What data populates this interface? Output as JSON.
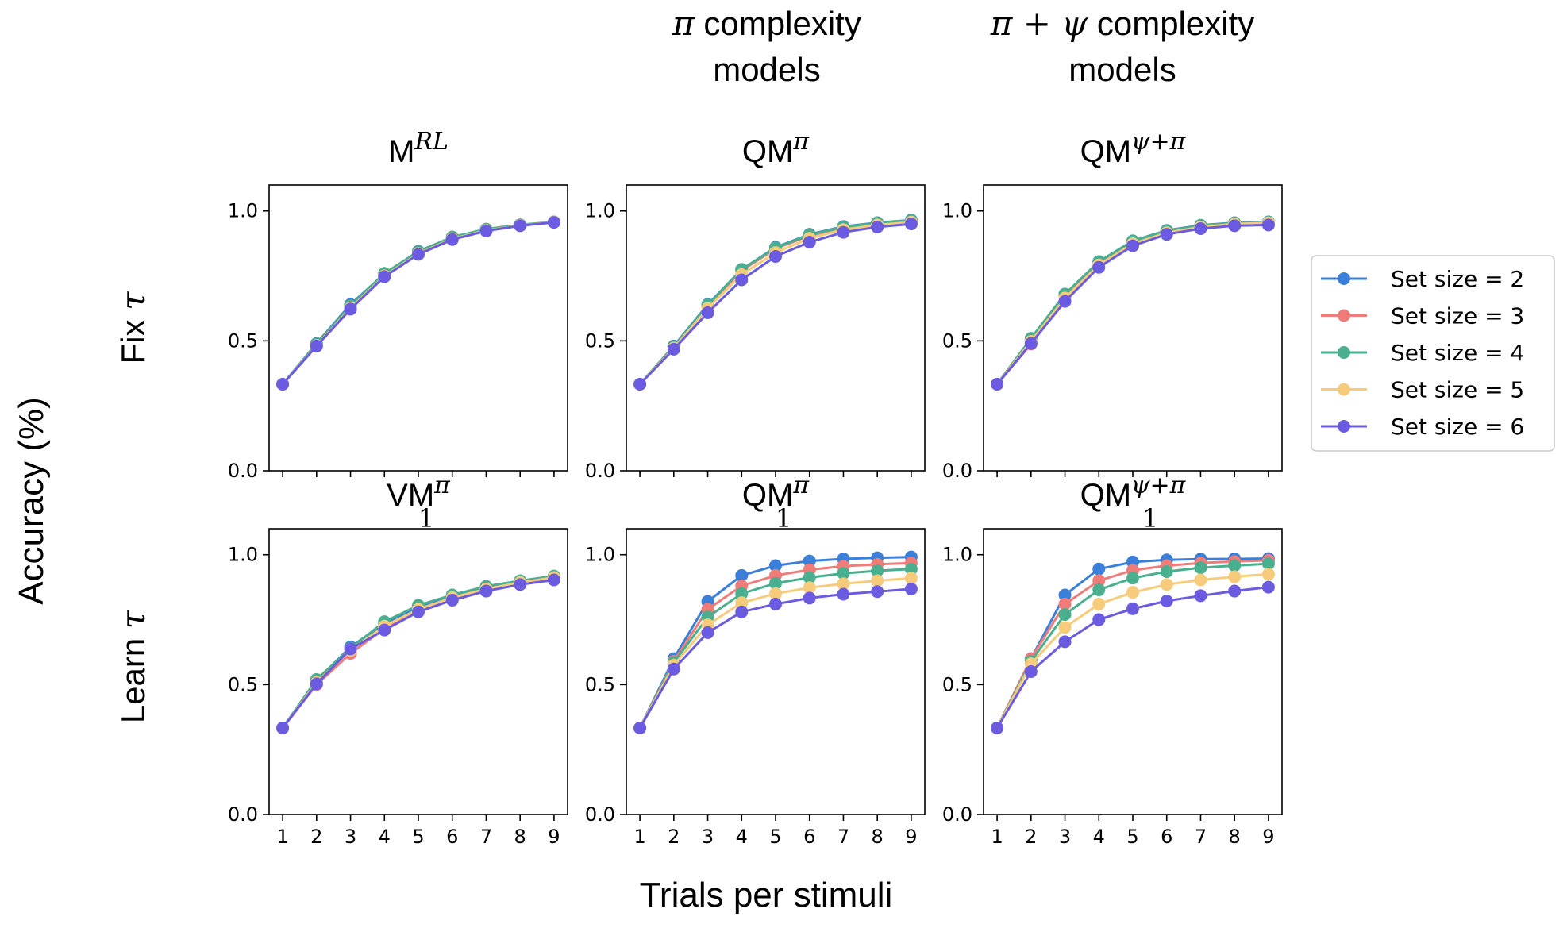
{
  "figure": {
    "col_headers": [
      {
        "symbol": "π",
        "line1_rest": " complexity",
        "line2": "models"
      },
      {
        "symbol": "π + ψ",
        "line1_rest": " complexity",
        "line2": "models"
      }
    ],
    "row_labels": [
      {
        "prefix": "Fix",
        "symbol": "τ"
      },
      {
        "prefix": "Learn",
        "symbol": "τ"
      }
    ],
    "ylabel": "Accuracy (%)",
    "xlabel": "Trials per stimuli"
  },
  "legend": {
    "entries": [
      "Set size = 2",
      "Set size = 3",
      "Set size = 4",
      "Set size = 5",
      "Set size = 6"
    ],
    "colors": [
      "#3a7fd9",
      "#f07c7a",
      "#4aaf8f",
      "#f6cc7c",
      "#6b5be0"
    ]
  },
  "chart_data": [
    {
      "type": "line",
      "title": {
        "base": "M",
        "sup": "RL",
        "sub": ""
      },
      "x": [
        1,
        2,
        3,
        4,
        5,
        6,
        7,
        8,
        9
      ],
      "xticks": [
        "1",
        "2",
        "3",
        "4",
        "5",
        "6",
        "7",
        "8",
        "9"
      ],
      "ylim": [
        0,
        1.1
      ],
      "yticks": [
        "0.0",
        "0.5",
        "1.0"
      ],
      "show_xticks": false,
      "series": [
        {
          "name": "Set size = 2",
          "values": [
            0.333,
            0.49,
            0.64,
            0.758,
            0.845,
            0.898,
            0.928,
            0.946,
            0.958
          ]
        },
        {
          "name": "Set size = 3",
          "values": [
            0.333,
            0.485,
            0.628,
            0.752,
            0.84,
            0.895,
            0.926,
            0.945,
            0.957
          ]
        },
        {
          "name": "Set size = 4",
          "values": [
            0.333,
            0.488,
            0.635,
            0.76,
            0.843,
            0.9,
            0.93,
            0.947,
            0.958
          ]
        },
        {
          "name": "Set size = 5",
          "values": [
            0.333,
            0.482,
            0.626,
            0.75,
            0.836,
            0.893,
            0.925,
            0.944,
            0.957
          ]
        },
        {
          "name": "Set size = 6",
          "values": [
            0.333,
            0.48,
            0.622,
            0.747,
            0.833,
            0.89,
            0.923,
            0.943,
            0.956
          ]
        }
      ]
    },
    {
      "type": "line",
      "title": {
        "base": "QM",
        "sup": "π",
        "sub": ""
      },
      "x": [
        1,
        2,
        3,
        4,
        5,
        6,
        7,
        8,
        9
      ],
      "xticks": [
        "1",
        "2",
        "3",
        "4",
        "5",
        "6",
        "7",
        "8",
        "9"
      ],
      "ylim": [
        0,
        1.1
      ],
      "yticks": [
        "0.0",
        "0.5",
        "1.0"
      ],
      "show_xticks": false,
      "series": [
        {
          "name": "Set size = 2",
          "values": [
            0.333,
            0.48,
            0.64,
            0.775,
            0.86,
            0.91,
            0.94,
            0.955,
            0.965
          ]
        },
        {
          "name": "Set size = 3",
          "values": [
            0.333,
            0.478,
            0.635,
            0.77,
            0.855,
            0.905,
            0.935,
            0.952,
            0.962
          ]
        },
        {
          "name": "Set size = 4",
          "values": [
            0.333,
            0.478,
            0.638,
            0.775,
            0.858,
            0.908,
            0.938,
            0.954,
            0.964
          ]
        },
        {
          "name": "Set size = 5",
          "values": [
            0.333,
            0.472,
            0.625,
            0.755,
            0.84,
            0.895,
            0.928,
            0.946,
            0.957
          ]
        },
        {
          "name": "Set size = 6",
          "values": [
            0.333,
            0.468,
            0.608,
            0.735,
            0.825,
            0.88,
            0.918,
            0.938,
            0.95
          ]
        }
      ]
    },
    {
      "type": "line",
      "title": {
        "base": "QM",
        "sup": "ψ+π",
        "sub": ""
      },
      "x": [
        1,
        2,
        3,
        4,
        5,
        6,
        7,
        8,
        9
      ],
      "xticks": [
        "1",
        "2",
        "3",
        "4",
        "5",
        "6",
        "7",
        "8",
        "9"
      ],
      "ylim": [
        0,
        1.1
      ],
      "yticks": [
        "0.0",
        "0.5",
        "1.0"
      ],
      "show_xticks": false,
      "series": [
        {
          "name": "Set size = 2",
          "values": [
            0.333,
            0.505,
            0.68,
            0.805,
            0.885,
            0.925,
            0.945,
            0.955,
            0.958
          ]
        },
        {
          "name": "Set size = 3",
          "values": [
            0.333,
            0.488,
            0.668,
            0.795,
            0.878,
            0.918,
            0.94,
            0.952,
            0.956
          ]
        },
        {
          "name": "Set size = 4",
          "values": [
            0.333,
            0.51,
            0.68,
            0.805,
            0.884,
            0.924,
            0.944,
            0.954,
            0.957
          ]
        },
        {
          "name": "Set size = 5",
          "values": [
            0.333,
            0.498,
            0.665,
            0.792,
            0.874,
            0.916,
            0.938,
            0.95,
            0.954
          ]
        },
        {
          "name": "Set size = 6",
          "values": [
            0.333,
            0.49,
            0.652,
            0.783,
            0.866,
            0.91,
            0.932,
            0.943,
            0.946
          ]
        }
      ]
    },
    {
      "type": "line",
      "title": {
        "base": "VM",
        "sup": "π",
        "sub": "1"
      },
      "x": [
        1,
        2,
        3,
        4,
        5,
        6,
        7,
        8,
        9
      ],
      "xticks": [
        "1",
        "2",
        "3",
        "4",
        "5",
        "6",
        "7",
        "8",
        "9"
      ],
      "ylim": [
        0,
        1.1
      ],
      "yticks": [
        "0.0",
        "0.5",
        "1.0"
      ],
      "show_xticks": true,
      "series": [
        {
          "name": "Set size = 2",
          "values": [
            0.333,
            0.515,
            0.645,
            0.735,
            0.8,
            0.84,
            0.873,
            0.897,
            0.915
          ]
        },
        {
          "name": "Set size = 3",
          "values": [
            0.333,
            0.5,
            0.62,
            0.715,
            0.785,
            0.83,
            0.865,
            0.89,
            0.908
          ]
        },
        {
          "name": "Set size = 4",
          "values": [
            0.333,
            0.52,
            0.64,
            0.742,
            0.805,
            0.845,
            0.878,
            0.9,
            0.918
          ]
        },
        {
          "name": "Set size = 5",
          "values": [
            0.333,
            0.508,
            0.632,
            0.725,
            0.79,
            0.835,
            0.868,
            0.893,
            0.912
          ]
        },
        {
          "name": "Set size = 6",
          "values": [
            0.333,
            0.503,
            0.637,
            0.71,
            0.78,
            0.825,
            0.86,
            0.885,
            0.903
          ]
        }
      ]
    },
    {
      "type": "line",
      "title": {
        "base": "QM",
        "sup": "π",
        "sub": "1"
      },
      "x": [
        1,
        2,
        3,
        4,
        5,
        6,
        7,
        8,
        9
      ],
      "xticks": [
        "1",
        "2",
        "3",
        "4",
        "5",
        "6",
        "7",
        "8",
        "9"
      ],
      "ylim": [
        0,
        1.1
      ],
      "yticks": [
        "0.0",
        "0.5",
        "1.0"
      ],
      "show_xticks": true,
      "series": [
        {
          "name": "Set size = 2",
          "values": [
            0.333,
            0.6,
            0.82,
            0.92,
            0.958,
            0.976,
            0.984,
            0.988,
            0.991
          ]
        },
        {
          "name": "Set size = 3",
          "values": [
            0.333,
            0.59,
            0.79,
            0.88,
            0.92,
            0.942,
            0.956,
            0.963,
            0.968
          ]
        },
        {
          "name": "Set size = 4",
          "values": [
            0.333,
            0.585,
            0.76,
            0.85,
            0.89,
            0.912,
            0.928,
            0.938,
            0.945
          ]
        },
        {
          "name": "Set size = 5",
          "values": [
            0.333,
            0.575,
            0.73,
            0.815,
            0.85,
            0.873,
            0.888,
            0.9,
            0.91
          ]
        },
        {
          "name": "Set size = 6",
          "values": [
            0.333,
            0.56,
            0.7,
            0.78,
            0.81,
            0.833,
            0.848,
            0.858,
            0.868
          ]
        }
      ]
    },
    {
      "type": "line",
      "title": {
        "base": "QM",
        "sup": "ψ+π",
        "sub": "1"
      },
      "x": [
        1,
        2,
        3,
        4,
        5,
        6,
        7,
        8,
        9
      ],
      "xticks": [
        "1",
        "2",
        "3",
        "4",
        "5",
        "6",
        "7",
        "8",
        "9"
      ],
      "ylim": [
        0,
        1.1
      ],
      "yticks": [
        "0.0",
        "0.5",
        "1.0"
      ],
      "show_xticks": true,
      "series": [
        {
          "name": "Set size = 2",
          "values": [
            0.333,
            0.6,
            0.845,
            0.945,
            0.972,
            0.98,
            0.983,
            0.984,
            0.985
          ]
        },
        {
          "name": "Set size = 3",
          "values": [
            0.333,
            0.6,
            0.81,
            0.9,
            0.94,
            0.958,
            0.968,
            0.974,
            0.978
          ]
        },
        {
          "name": "Set size = 4",
          "values": [
            0.333,
            0.59,
            0.77,
            0.865,
            0.91,
            0.935,
            0.95,
            0.958,
            0.965
          ]
        },
        {
          "name": "Set size = 5",
          "values": [
            0.333,
            0.58,
            0.72,
            0.81,
            0.855,
            0.885,
            0.903,
            0.915,
            0.925
          ]
        },
        {
          "name": "Set size = 6",
          "values": [
            0.333,
            0.55,
            0.665,
            0.75,
            0.792,
            0.822,
            0.842,
            0.86,
            0.875
          ]
        }
      ]
    }
  ]
}
